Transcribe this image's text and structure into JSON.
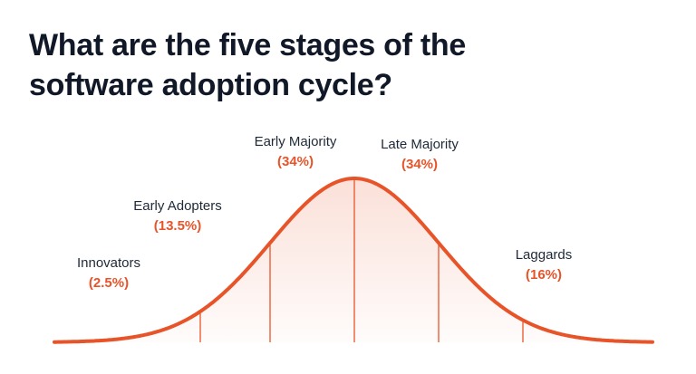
{
  "title": "What are the five stages of the software adoption cycle?",
  "colors": {
    "accent": "#e8542a",
    "text": "#1f2937"
  },
  "chart_data": {
    "type": "area",
    "stages": [
      {
        "name": "Innovators",
        "percent": "(2.5%)"
      },
      {
        "name": "Early Adopters",
        "percent": "(13.5%)"
      },
      {
        "name": "Early Majority",
        "percent": "(34%)"
      },
      {
        "name": "Late Majority",
        "percent": "(34%)"
      },
      {
        "name": "Laggards",
        "percent": "(16%)"
      }
    ]
  }
}
